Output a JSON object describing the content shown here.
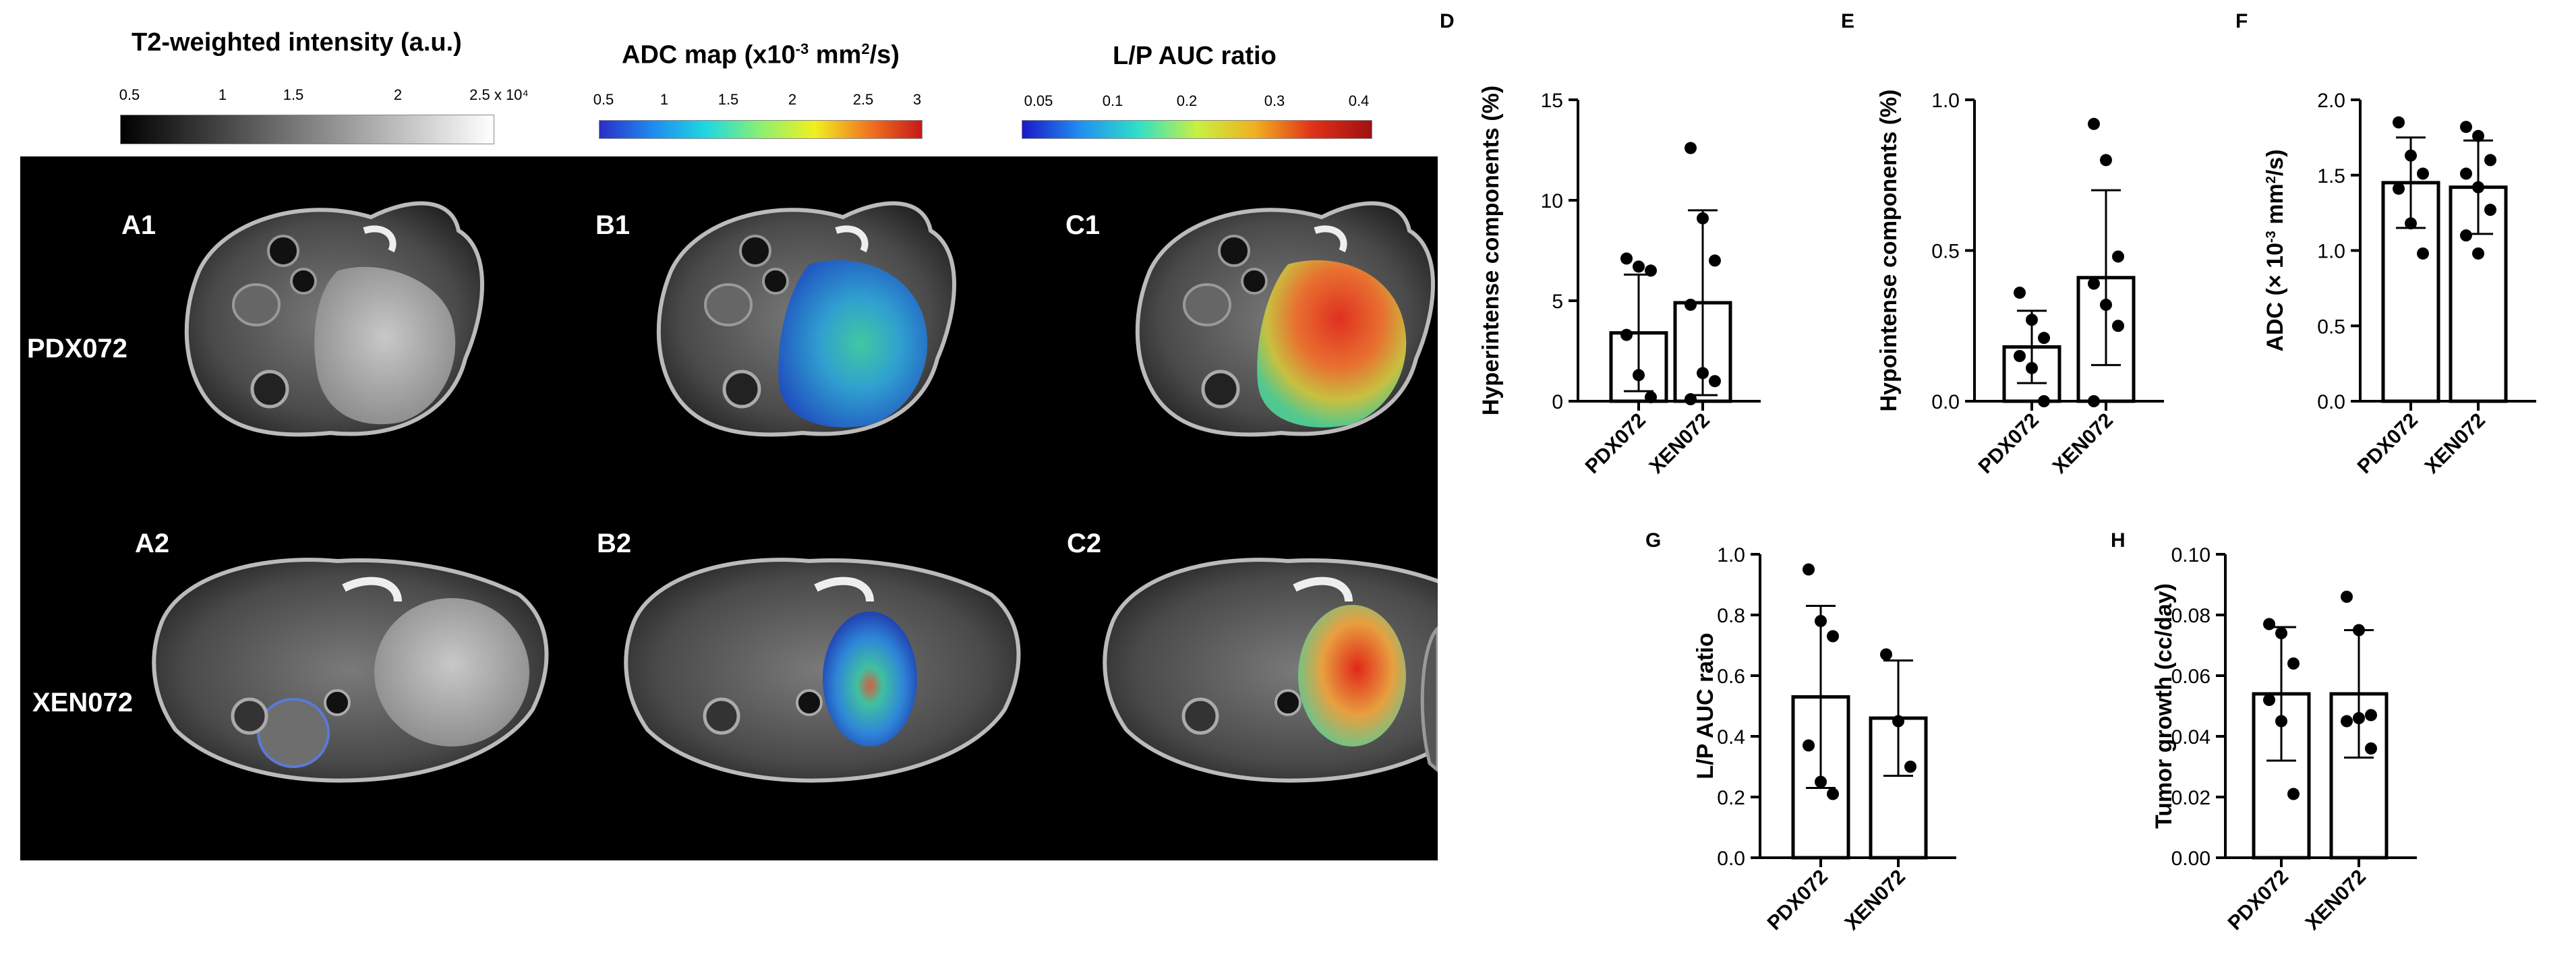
{
  "colorbars": [
    {
      "title": "T2-weighted intensity (a.u.)",
      "ticks": [
        "0.5",
        "1",
        "1.5",
        "2",
        "2.5 x 10⁴"
      ],
      "gradient": [
        "#000000",
        "#ffffff"
      ]
    },
    {
      "title_prefix": "ADC map (x10",
      "title_sup": "-3",
      "title_mid": " mm",
      "title_sup2": "2",
      "title_suffix": "/s)",
      "ticks": [
        "0.5",
        "1",
        "1.5",
        "2",
        "2.5",
        "3"
      ],
      "gradient": [
        "#2a2ec8",
        "#1e8cf0",
        "#20d8e0",
        "#8cf070",
        "#f0f020",
        "#f07820",
        "#c81818"
      ]
    },
    {
      "title": "L/P AUC ratio",
      "ticks": [
        "0.05",
        "0.1",
        "0.2",
        "0.3",
        "0.4"
      ],
      "gradient": [
        "#1a18c8",
        "#2090f0",
        "#30e0c8",
        "#c8f040",
        "#f0b020",
        "#e03018",
        "#a01010"
      ]
    }
  ],
  "mri": {
    "panel_labels": [
      "A1",
      "B1",
      "C1",
      "A2",
      "B2",
      "C2"
    ],
    "row_labels": [
      "PDX072",
      "XEN072"
    ]
  },
  "chart_data": [
    {
      "id": "D",
      "type": "bar",
      "ylabel": "Hyperintense components (%)",
      "categories": [
        "PDX072",
        "XEN072"
      ],
      "values": [
        3.4,
        4.9
      ],
      "err": [
        2.9,
        4.6
      ],
      "ylim": [
        0,
        15
      ],
      "yticks": [
        "0",
        "5",
        "10",
        "15"
      ],
      "points": [
        [
          7.1,
          6.7,
          6.5,
          3.3,
          1.3,
          0.2
        ],
        [
          12.6,
          9.1,
          7.0,
          4.8,
          1.4,
          1.0,
          0.1
        ]
      ]
    },
    {
      "id": "E",
      "type": "bar",
      "ylabel": "Hypointense components (%)",
      "categories": [
        "PDX072",
        "XEN072"
      ],
      "values": [
        0.18,
        0.41
      ],
      "err": [
        0.12,
        0.29
      ],
      "ylim": [
        0,
        1.0
      ],
      "yticks": [
        "0.0",
        "0.5",
        "1.0"
      ],
      "points": [
        [
          0.36,
          0.27,
          0.21,
          0.15,
          0.11,
          0.0
        ],
        [
          0.92,
          0.8,
          0.48,
          0.39,
          0.32,
          0.25,
          0.0
        ]
      ]
    },
    {
      "id": "F",
      "type": "bar",
      "ylabel_prefix": "ADC (× 10",
      "ylabel_sup": "-3",
      "ylabel_mid": " mm",
      "ylabel_sup2": "2",
      "ylabel_suffix": "/s)",
      "categories": [
        "PDX072",
        "XEN072"
      ],
      "values": [
        1.45,
        1.42
      ],
      "err": [
        0.3,
        0.31
      ],
      "ylim": [
        0,
        2.0
      ],
      "yticks": [
        "0.0",
        "0.5",
        "1.0",
        "1.5",
        "2.0"
      ],
      "points": [
        [
          1.85,
          1.63,
          1.51,
          1.41,
          1.18,
          0.98
        ],
        [
          1.82,
          1.76,
          1.6,
          1.51,
          1.42,
          1.27,
          1.1,
          0.98
        ]
      ]
    },
    {
      "id": "G",
      "type": "bar",
      "ylabel": "L/P AUC ratio",
      "categories": [
        "PDX072",
        "XEN072"
      ],
      "values": [
        0.53,
        0.46
      ],
      "err": [
        0.3,
        0.19
      ],
      "ylim": [
        0,
        1.0
      ],
      "yticks": [
        "0.0",
        "0.2",
        "0.4",
        "0.6",
        "0.8",
        "1.0"
      ],
      "points": [
        [
          0.95,
          0.78,
          0.73,
          0.37,
          0.25,
          0.21
        ],
        [
          0.67,
          0.45,
          0.3
        ]
      ]
    },
    {
      "id": "H",
      "type": "bar",
      "ylabel": "Tumor growth (cc/day)",
      "categories": [
        "PDX072",
        "XEN072"
      ],
      "values": [
        0.054,
        0.054
      ],
      "err": [
        0.022,
        0.021
      ],
      "ylim": [
        0,
        0.1
      ],
      "yticks": [
        "0.00",
        "0.02",
        "0.04",
        "0.06",
        "0.08",
        "0.10"
      ],
      "points": [
        [
          0.077,
          0.074,
          0.064,
          0.052,
          0.045,
          0.021
        ],
        [
          0.086,
          0.075,
          0.047,
          0.045,
          0.046,
          0.036
        ]
      ]
    }
  ]
}
